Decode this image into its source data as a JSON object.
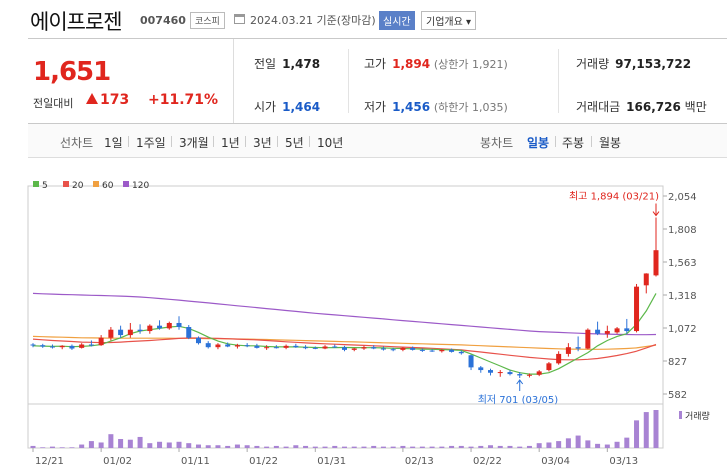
{
  "header": {
    "company_name": "에이프로젠",
    "code": "007460",
    "market": "코스피",
    "date_text": "2024.03.21 기준(장마감)",
    "realtime_label": "실시간",
    "company_info_label": "기업개요"
  },
  "quote": {
    "price": "1,651",
    "change_label": "전일대비",
    "change": "173",
    "change_pct": "+11.71%",
    "prev_close_label": "전일",
    "prev_close": "1,478",
    "high_label": "고가",
    "high": "1,894",
    "high_sub": "(상한가 1,921)",
    "volume_label": "거래량",
    "volume": "97,153,722",
    "open_label": "시가",
    "open": "1,464",
    "low_label": "저가",
    "low": "1,456",
    "low_sub": "(하한가 1,035)",
    "amount_label": "거래대금",
    "amount": "166,726",
    "amount_unit": "백만"
  },
  "tabs": {
    "line_label": "선차트",
    "line_items": [
      "1일",
      "1주일",
      "3개월",
      "1년",
      "3년",
      "5년",
      "10년"
    ],
    "candle_label": "봉차트",
    "candle_items": [
      "일봉",
      "주봉",
      "월봉"
    ],
    "active": "일봉"
  },
  "colors": {
    "up": "#e0261e",
    "down": "#2b72d8",
    "ma5": "#5cb84a",
    "ma20": "#e8524a",
    "ma60": "#f0a040",
    "ma120": "#9c5ac8",
    "volume": "#a883d3"
  },
  "chart_data": {
    "type": "candlestick",
    "title": "",
    "legend": [
      {
        "name": "5",
        "color": "#5cb84a"
      },
      {
        "name": "20",
        "color": "#e8524a"
      },
      {
        "name": "60",
        "color": "#f0a040"
      },
      {
        "name": "120",
        "color": "#9c5ac8"
      }
    ],
    "ylim": [
      582,
      2054
    ],
    "y_ticks": [
      "2,054",
      "1,808",
      "1,563",
      "1,318",
      "1,072",
      "827",
      "582"
    ],
    "x_ticks": [
      "12/21",
      "01/02",
      "01/11",
      "01/22",
      "01/31",
      "02/13",
      "02/22",
      "03/04",
      "03/13"
    ],
    "x_tick_index": [
      0,
      7,
      15,
      22,
      29,
      38,
      45,
      52,
      59
    ],
    "annotations": {
      "high": "최고 1,894 (03/21)",
      "low": "최저 701 (03/05)"
    },
    "volume_label": "거래량",
    "candles": [
      [
        950,
        960,
        930,
        945
      ],
      [
        945,
        955,
        925,
        935
      ],
      [
        935,
        950,
        920,
        930
      ],
      [
        930,
        945,
        915,
        940
      ],
      [
        940,
        950,
        910,
        920
      ],
      [
        925,
        960,
        920,
        950
      ],
      [
        950,
        980,
        935,
        945
      ],
      [
        945,
        1020,
        940,
        1000
      ],
      [
        1000,
        1080,
        980,
        1060
      ],
      [
        1060,
        1090,
        1000,
        1020
      ],
      [
        1020,
        1110,
        1000,
        1060
      ],
      [
        1060,
        1100,
        1030,
        1050
      ],
      [
        1050,
        1100,
        1030,
        1090
      ],
      [
        1090,
        1130,
        1060,
        1070
      ],
      [
        1070,
        1120,
        1060,
        1110
      ],
      [
        1110,
        1160,
        1060,
        1080
      ],
      [
        1080,
        1095,
        990,
        1000
      ],
      [
        1000,
        1010,
        950,
        960
      ],
      [
        960,
        975,
        920,
        930
      ],
      [
        930,
        960,
        915,
        950
      ],
      [
        950,
        965,
        930,
        935
      ],
      [
        935,
        955,
        920,
        945
      ],
      [
        945,
        960,
        930,
        940
      ],
      [
        940,
        955,
        920,
        925
      ],
      [
        925,
        945,
        910,
        930
      ],
      [
        930,
        945,
        920,
        925
      ],
      [
        925,
        950,
        915,
        940
      ],
      [
        940,
        955,
        925,
        930
      ],
      [
        930,
        945,
        915,
        925
      ],
      [
        925,
        935,
        915,
        920
      ],
      [
        920,
        945,
        915,
        935
      ],
      [
        935,
        950,
        925,
        930
      ],
      [
        930,
        940,
        900,
        910
      ],
      [
        910,
        925,
        900,
        920
      ],
      [
        920,
        940,
        910,
        930
      ],
      [
        930,
        945,
        915,
        920
      ],
      [
        920,
        935,
        905,
        915
      ],
      [
        915,
        925,
        900,
        910
      ],
      [
        910,
        930,
        900,
        925
      ],
      [
        925,
        935,
        905,
        910
      ],
      [
        910,
        920,
        895,
        905
      ],
      [
        905,
        915,
        895,
        900
      ],
      [
        900,
        915,
        890,
        910
      ],
      [
        910,
        920,
        890,
        895
      ],
      [
        895,
        905,
        875,
        885
      ],
      [
        870,
        875,
        760,
        780
      ],
      [
        780,
        790,
        740,
        760
      ],
      [
        760,
        770,
        720,
        740
      ],
      [
        740,
        760,
        710,
        745
      ],
      [
        745,
        760,
        720,
        730
      ],
      [
        730,
        745,
        701,
        720
      ],
      [
        720,
        735,
        705,
        725
      ],
      [
        725,
        760,
        715,
        750
      ],
      [
        760,
        820,
        750,
        810
      ],
      [
        810,
        900,
        800,
        880
      ],
      [
        880,
        960,
        860,
        930
      ],
      [
        930,
        1010,
        900,
        920
      ],
      [
        920,
        1070,
        915,
        1060
      ],
      [
        1060,
        1120,
        1020,
        1030
      ],
      [
        1030,
        1090,
        1000,
        1050
      ],
      [
        1040,
        1080,
        1030,
        1070
      ],
      [
        1070,
        1140,
        1030,
        1050
      ],
      [
        1050,
        1400,
        1040,
        1380
      ],
      [
        1390,
        1480,
        1330,
        1478
      ],
      [
        1464,
        1894,
        1456,
        1651
      ]
    ],
    "volume": [
      3,
      1,
      2,
      1,
      1,
      5,
      10,
      8,
      20,
      13,
      12,
      16,
      7,
      9,
      8,
      9,
      7,
      5,
      4,
      4,
      3,
      5,
      4,
      3,
      2,
      3,
      2,
      4,
      3,
      2,
      2,
      3,
      2,
      2,
      2,
      3,
      2,
      2,
      3,
      2,
      2,
      2,
      2,
      3,
      3,
      2,
      3,
      4,
      3,
      3,
      2,
      3,
      7,
      8,
      10,
      14,
      18,
      11,
      6,
      5,
      9,
      15,
      40,
      52,
      55
    ],
    "ma5": [
      940,
      938,
      936,
      937,
      934,
      936,
      940,
      950,
      975,
      1000,
      1030,
      1050,
      1060,
      1070,
      1080,
      1085,
      1070,
      1040,
      1005,
      975,
      955,
      945,
      940,
      940,
      935,
      933,
      932,
      932,
      930,
      928,
      926,
      927,
      928,
      927,
      926,
      926,
      925,
      922,
      920,
      918,
      916,
      914,
      912,
      910,
      906,
      880,
      850,
      820,
      790,
      760,
      740,
      730,
      730,
      740,
      770,
      810,
      850,
      890,
      940,
      980,
      1010,
      1030,
      1100,
      1200,
      1330
    ],
    "ma20": [
      990,
      985,
      980,
      976,
      972,
      968,
      966,
      964,
      965,
      968,
      972,
      976,
      980,
      985,
      990,
      995,
      998,
      998,
      997,
      995,
      993,
      990,
      987,
      984,
      980,
      975,
      970,
      966,
      962,
      958,
      955,
      952,
      949,
      946,
      943,
      940,
      937,
      934,
      931,
      928,
      925,
      922,
      918,
      914,
      910,
      902,
      894,
      886,
      878,
      870,
      862,
      854,
      848,
      842,
      838,
      836,
      836,
      840,
      846,
      856,
      868,
      882,
      900,
      925,
      950
    ],
    "ma60": [
      1010,
      1008,
      1006,
      1004,
      1002,
      1000,
      999,
      998,
      997,
      997,
      997,
      997,
      997,
      997,
      997,
      996,
      996,
      995,
      994,
      993,
      992,
      991,
      990,
      989,
      987,
      985,
      983,
      981,
      979,
      977,
      975,
      973,
      971,
      969,
      967,
      965,
      963,
      961,
      959,
      957,
      955,
      953,
      951,
      949,
      947,
      944,
      941,
      938,
      935,
      932,
      929,
      926,
      923,
      920,
      918,
      916,
      915,
      914,
      914,
      915,
      917,
      920,
      925,
      935,
      945
    ],
    "ma120": [
      1330,
      1327,
      1325,
      1322,
      1320,
      1318,
      1316,
      1314,
      1312,
      1310,
      1307,
      1303,
      1298,
      1292,
      1286,
      1280,
      1273,
      1266,
      1259,
      1252,
      1245,
      1238,
      1231,
      1224,
      1217,
      1210,
      1203,
      1196,
      1189,
      1182,
      1176,
      1170,
      1164,
      1158,
      1152,
      1146,
      1140,
      1134,
      1128,
      1122,
      1116,
      1110,
      1104,
      1098,
      1092,
      1086,
      1080,
      1074,
      1068,
      1062,
      1056,
      1050,
      1046,
      1043,
      1040,
      1037,
      1034,
      1031,
      1029,
      1027,
      1025,
      1024,
      1023,
      1023,
      1024
    ]
  }
}
